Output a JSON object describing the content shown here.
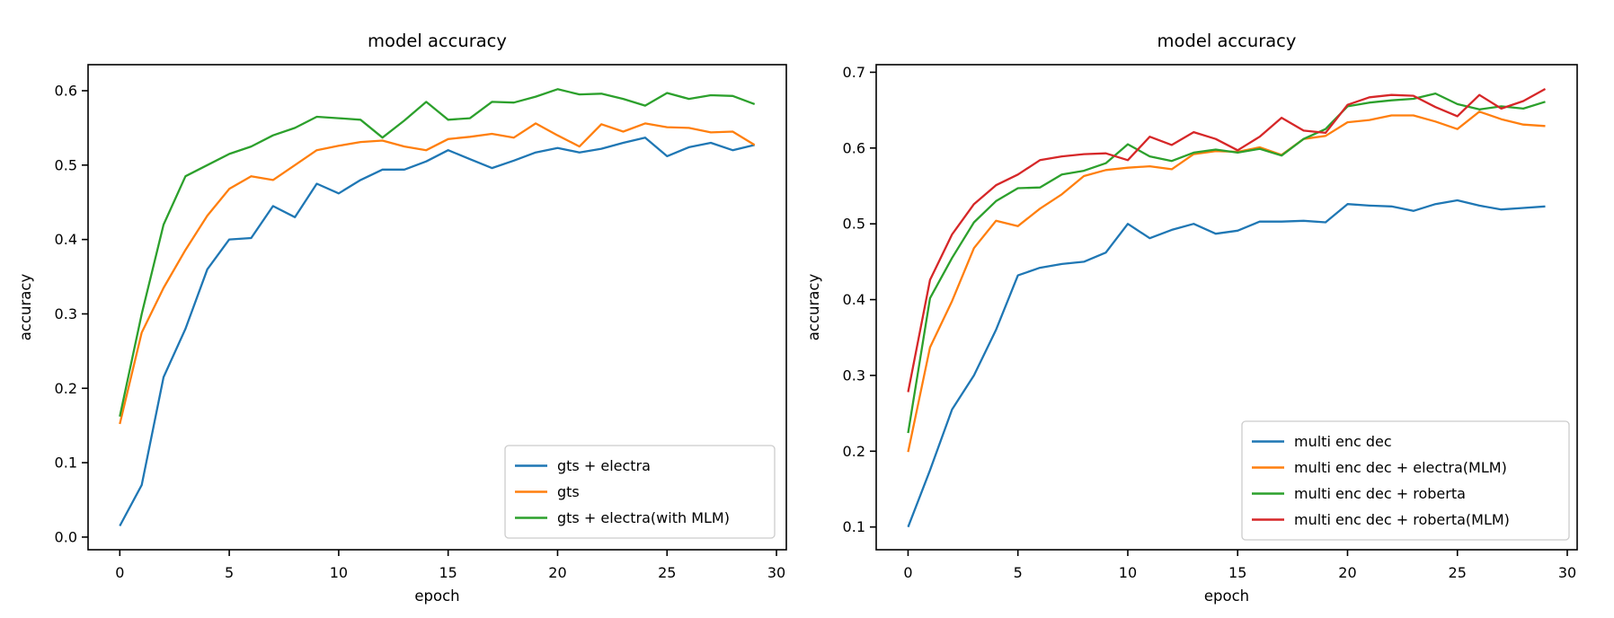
{
  "figure": {
    "background": "#ffffff"
  },
  "chart_data": [
    {
      "type": "line",
      "title": "model accuracy",
      "xlabel": "epoch",
      "ylabel": "accuracy",
      "legend_position": "lower right",
      "grid": false,
      "xlim": [
        -1.45,
        30.45
      ],
      "ylim": [
        -0.017,
        0.635
      ],
      "xtick_values": [
        0,
        5,
        10,
        15,
        20,
        25,
        30
      ],
      "xtick_labels": [
        "0",
        "5",
        "10",
        "15",
        "20",
        "25",
        "30"
      ],
      "ytick_values": [
        0.0,
        0.1,
        0.2,
        0.3,
        0.4,
        0.5,
        0.6
      ],
      "ytick_labels": [
        "0.0",
        "0.1",
        "0.2",
        "0.3",
        "0.4",
        "0.5",
        "0.6"
      ],
      "x": [
        0,
        1,
        2,
        3,
        4,
        5,
        6,
        7,
        8,
        9,
        10,
        11,
        12,
        13,
        14,
        15,
        16,
        17,
        18,
        19,
        20,
        21,
        22,
        23,
        24,
        25,
        26,
        27,
        28,
        29
      ],
      "series": [
        {
          "name": "gts + electra",
          "color": "#1f77b4",
          "values": [
            0.015,
            0.07,
            0.215,
            0.28,
            0.36,
            0.4,
            0.402,
            0.445,
            0.43,
            0.475,
            0.462,
            0.48,
            0.494,
            0.494,
            0.505,
            0.52,
            0.508,
            0.496,
            0.506,
            0.517,
            0.523,
            0.517,
            0.522,
            0.53,
            0.537,
            0.512,
            0.524,
            0.53,
            0.52,
            0.527
          ]
        },
        {
          "name": "gts",
          "color": "#ff7f0e",
          "values": [
            0.152,
            0.275,
            0.335,
            0.386,
            0.432,
            0.468,
            0.485,
            0.48,
            0.5,
            0.52,
            0.526,
            0.531,
            0.533,
            0.525,
            0.52,
            0.535,
            0.538,
            0.542,
            0.537,
            0.556,
            0.54,
            0.525,
            0.555,
            0.545,
            0.556,
            0.551,
            0.55,
            0.544,
            0.545,
            0.527
          ]
        },
        {
          "name": "gts + electra(with MLM)",
          "color": "#2ca02c",
          "values": [
            0.162,
            0.3,
            0.42,
            0.485,
            0.5,
            0.515,
            0.525,
            0.54,
            0.55,
            0.565,
            0.563,
            0.561,
            0.537,
            0.56,
            0.585,
            0.561,
            0.563,
            0.585,
            0.584,
            0.592,
            0.602,
            0.595,
            0.596,
            0.589,
            0.58,
            0.597,
            0.589,
            0.594,
            0.593,
            0.582
          ]
        }
      ]
    },
    {
      "type": "line",
      "title": "model accuracy",
      "xlabel": "epoch",
      "ylabel": "accuracy",
      "legend_position": "lower right",
      "grid": false,
      "xlim": [
        -1.45,
        30.45
      ],
      "ylim": [
        0.07,
        0.71
      ],
      "xtick_values": [
        0,
        5,
        10,
        15,
        20,
        25,
        30
      ],
      "xtick_labels": [
        "0",
        "5",
        "10",
        "15",
        "20",
        "25",
        "30"
      ],
      "ytick_values": [
        0.1,
        0.2,
        0.3,
        0.4,
        0.5,
        0.6,
        0.7
      ],
      "ytick_labels": [
        "0.1",
        "0.2",
        "0.3",
        "0.4",
        "0.5",
        "0.6",
        "0.7"
      ],
      "x": [
        0,
        1,
        2,
        3,
        4,
        5,
        6,
        7,
        8,
        9,
        10,
        11,
        12,
        13,
        14,
        15,
        16,
        17,
        18,
        19,
        20,
        21,
        22,
        23,
        24,
        25,
        26,
        27,
        28,
        29
      ],
      "series": [
        {
          "name": "multi enc dec",
          "color": "#1f77b4",
          "values": [
            0.1,
            0.175,
            0.255,
            0.3,
            0.36,
            0.432,
            0.442,
            0.447,
            0.45,
            0.462,
            0.5,
            0.481,
            0.492,
            0.5,
            0.487,
            0.491,
            0.503,
            0.503,
            0.504,
            0.502,
            0.526,
            0.524,
            0.523,
            0.517,
            0.526,
            0.531,
            0.524,
            0.519,
            0.521,
            0.523
          ]
        },
        {
          "name": "multi enc dec + electra(MLM)",
          "color": "#ff7f0e",
          "values": [
            0.199,
            0.337,
            0.398,
            0.468,
            0.504,
            0.497,
            0.52,
            0.539,
            0.563,
            0.571,
            0.574,
            0.576,
            0.572,
            0.592,
            0.596,
            0.595,
            0.601,
            0.591,
            0.612,
            0.616,
            0.634,
            0.637,
            0.643,
            0.643,
            0.635,
            0.625,
            0.648,
            0.638,
            0.631,
            0.629
          ]
        },
        {
          "name": "multi enc dec + roberta",
          "color": "#2ca02c",
          "values": [
            0.224,
            0.402,
            0.455,
            0.502,
            0.53,
            0.547,
            0.548,
            0.565,
            0.57,
            0.58,
            0.605,
            0.589,
            0.583,
            0.594,
            0.598,
            0.594,
            0.599,
            0.59,
            0.612,
            0.625,
            0.655,
            0.66,
            0.663,
            0.665,
            0.672,
            0.658,
            0.651,
            0.655,
            0.652,
            0.661
          ]
        },
        {
          "name": "multi enc dec + roberta(MLM)",
          "color": "#d62728",
          "values": [
            0.278,
            0.426,
            0.486,
            0.526,
            0.551,
            0.565,
            0.584,
            0.589,
            0.592,
            0.593,
            0.584,
            0.615,
            0.604,
            0.621,
            0.612,
            0.597,
            0.615,
            0.64,
            0.623,
            0.62,
            0.657,
            0.667,
            0.67,
            0.669,
            0.654,
            0.642,
            0.67,
            0.652,
            0.662,
            0.678
          ]
        }
      ]
    }
  ]
}
